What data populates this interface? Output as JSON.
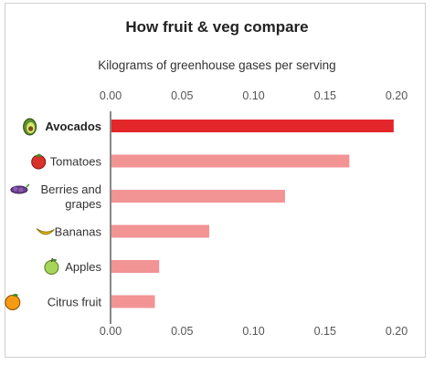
{
  "chart_data": {
    "type": "bar",
    "orientation": "horizontal",
    "title": "How fruit & veg compare",
    "subtitle": "Kilograms of greenhouse gases per serving",
    "categories": [
      {
        "label": "Avocados",
        "lines": [
          "Avocados"
        ],
        "icon": "avocado-icon",
        "highlight": true
      },
      {
        "label": "Tomatoes",
        "lines": [
          "Tomatoes"
        ],
        "icon": "tomato-icon",
        "highlight": false
      },
      {
        "label": "Berries and grapes",
        "lines": [
          "Berries and",
          "grapes"
        ],
        "icon": "grapes-icon",
        "highlight": false
      },
      {
        "label": "Bananas",
        "lines": [
          "Bananas"
        ],
        "icon": "banana-icon",
        "highlight": false
      },
      {
        "label": "Apples",
        "lines": [
          "Apples"
        ],
        "icon": "apple-icon",
        "highlight": false
      },
      {
        "label": "Citrus fruit",
        "lines": [
          "Citrus fruit"
        ],
        "icon": "orange-icon",
        "highlight": false
      }
    ],
    "values": [
      0.198,
      0.167,
      0.122,
      0.069,
      0.034,
      0.031
    ],
    "xlim": [
      0,
      0.2
    ],
    "xticks": [
      "0.00",
      "0.05",
      "0.10",
      "0.15",
      "0.20"
    ],
    "tick_positions": [
      "top",
      "bottom"
    ],
    "grid": false,
    "colors": {
      "highlight": "#e3262a",
      "bar": "#f29394",
      "axis": "#888888"
    }
  }
}
